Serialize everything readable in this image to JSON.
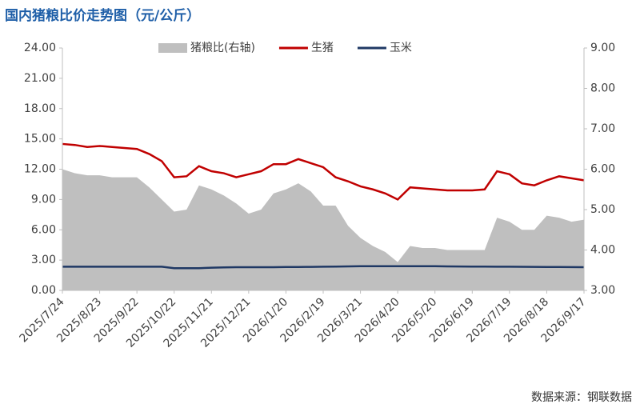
{
  "chart_data": {
    "type": "line",
    "title": "国内猪粮比价走势图（元/公斤）",
    "source": "数据来源：钢联数据",
    "categories": [
      "2025/7/24",
      null,
      null,
      "2025/8/23",
      null,
      null,
      "2025/9/22",
      null,
      null,
      "2025/10/22",
      null,
      null,
      "2025/11/21",
      null,
      null,
      "2025/12/21",
      null,
      null,
      "2026/1/20",
      null,
      null,
      "2026/2/19",
      null,
      null,
      "2026/3/21",
      null,
      null,
      "2026/4/20",
      null,
      null,
      "2026/5/20",
      null,
      null,
      "2026/6/19",
      null,
      null,
      "2026/7/19",
      null,
      null,
      "2026/8/18",
      null,
      null,
      "2026/9/17"
    ],
    "series": [
      {
        "name": "猪粮比(右轴)",
        "color": "#bfbfbf",
        "axis": "y2",
        "kind": "area",
        "values": [
          6.0,
          5.9,
          5.85,
          5.85,
          5.8,
          5.8,
          5.8,
          5.55,
          5.25,
          4.95,
          5.0,
          5.6,
          5.5,
          5.35,
          5.15,
          4.9,
          5.0,
          5.4,
          5.5,
          5.65,
          5.45,
          5.1,
          5.1,
          4.6,
          4.3,
          4.1,
          3.95,
          3.7,
          4.1,
          4.05,
          4.05,
          4.0,
          4.0,
          4.0,
          4.0,
          4.8,
          4.7,
          4.5,
          4.5,
          4.85,
          4.8,
          4.7,
          4.75
        ]
      },
      {
        "name": "生猪",
        "color": "#c00000",
        "kind": "line",
        "values": [
          14.5,
          14.4,
          14.2,
          14.3,
          14.2,
          14.1,
          14.0,
          13.5,
          12.8,
          11.2,
          11.3,
          12.3,
          11.8,
          11.6,
          11.2,
          11.5,
          11.8,
          12.5,
          12.5,
          13.0,
          12.6,
          12.2,
          11.2,
          10.8,
          10.3,
          10.0,
          9.6,
          9.0,
          10.2,
          10.1,
          10.0,
          9.9,
          9.9,
          9.9,
          10.0,
          11.8,
          11.5,
          10.6,
          10.4,
          10.9,
          11.3,
          11.1,
          10.9
        ]
      },
      {
        "name": "玉米",
        "color": "#1f3864",
        "kind": "line",
        "values": [
          2.35,
          2.35,
          2.35,
          2.35,
          2.35,
          2.35,
          2.35,
          2.35,
          2.35,
          2.2,
          2.2,
          2.2,
          2.25,
          2.28,
          2.3,
          2.3,
          2.3,
          2.3,
          2.32,
          2.32,
          2.33,
          2.35,
          2.36,
          2.38,
          2.4,
          2.4,
          2.4,
          2.4,
          2.4,
          2.4,
          2.4,
          2.38,
          2.37,
          2.36,
          2.36,
          2.35,
          2.35,
          2.34,
          2.33,
          2.32,
          2.32,
          2.31,
          2.3
        ]
      }
    ],
    "ylim": [
      0,
      24
    ],
    "yticks": [
      {
        "value": 0,
        "label": "0.00"
      },
      {
        "value": 3,
        "label": "3.00"
      },
      {
        "value": 6,
        "label": "6.00"
      },
      {
        "value": 9,
        "label": "9.00"
      },
      {
        "value": 12,
        "label": "12.00"
      },
      {
        "value": 15,
        "label": "15.00"
      },
      {
        "value": 18,
        "label": "18.00"
      },
      {
        "value": 21,
        "label": "21.00"
      },
      {
        "value": 24,
        "label": "24.00"
      }
    ],
    "y2lim": [
      3,
      9
    ],
    "y2ticks": [
      {
        "value": 3,
        "label": "3.00"
      },
      {
        "value": 4,
        "label": "4.00"
      },
      {
        "value": 5,
        "label": "5.00"
      },
      {
        "value": 6,
        "label": "6.00"
      },
      {
        "value": 7,
        "label": "7.00"
      },
      {
        "value": 8,
        "label": "8.00"
      },
      {
        "value": 9,
        "label": "9.00"
      }
    ],
    "legend": "top"
  }
}
